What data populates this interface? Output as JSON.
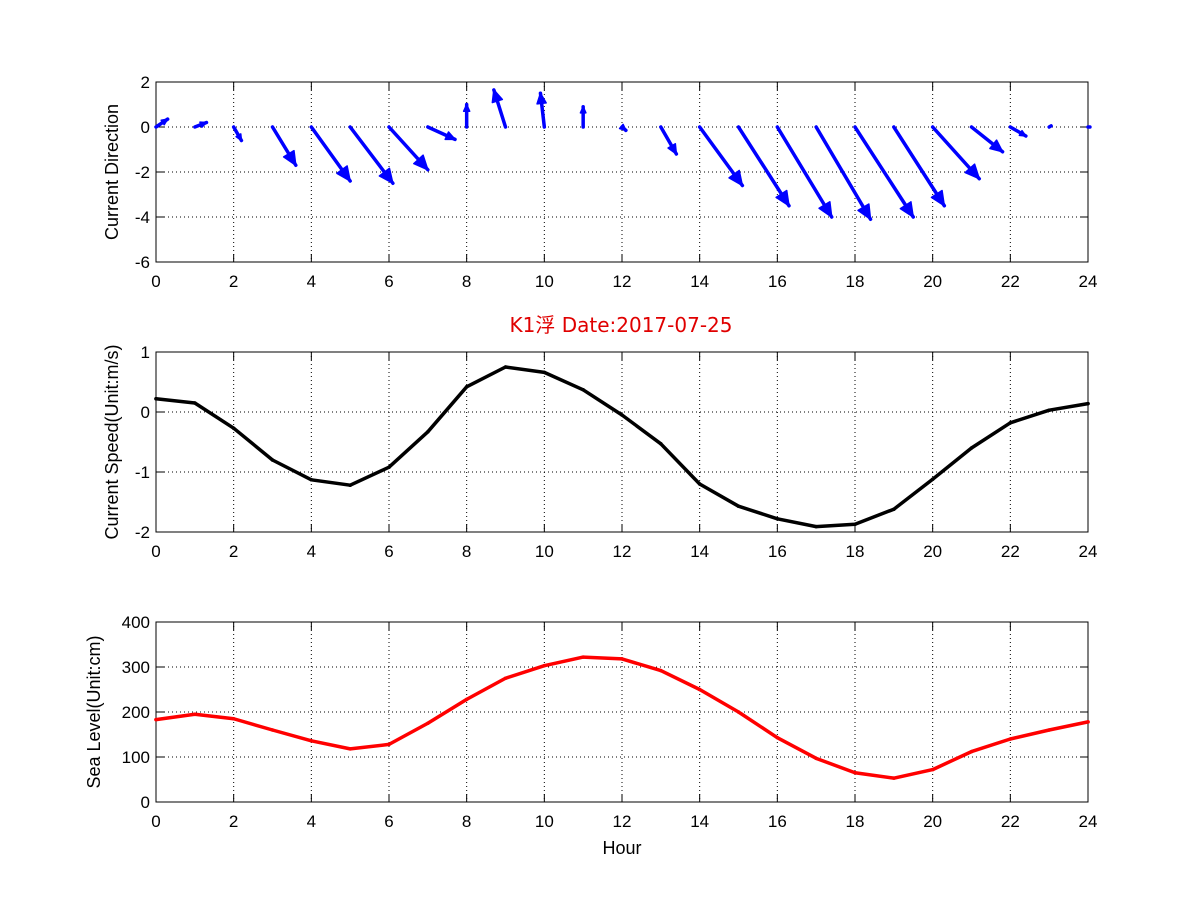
{
  "title": "K1浮    Date:2017-07-25",
  "colors": {
    "title": "#e00000",
    "arrows": "#0000ff",
    "speed_line": "#000000",
    "sea_level_line": "#ff0000"
  },
  "chart_data": [
    {
      "type": "quiver",
      "ylabel": "Current Direction",
      "xlabel": "",
      "xlim": [
        0,
        24
      ],
      "ylim": [
        -6,
        2
      ],
      "xticks": [
        0,
        2,
        4,
        6,
        8,
        10,
        12,
        14,
        16,
        18,
        20,
        22,
        24
      ],
      "yticks": [
        -6,
        -4,
        -2,
        0,
        2
      ],
      "grid": true,
      "x": [
        0,
        1,
        2,
        3,
        4,
        5,
        6,
        7,
        8,
        9,
        10,
        11,
        12,
        13,
        14,
        15,
        16,
        17,
        18,
        19,
        20,
        21,
        22,
        23,
        24
      ],
      "u": [
        0.3,
        0.3,
        0.2,
        0.6,
        1.0,
        1.1,
        1.0,
        0.7,
        0.0,
        -0.3,
        -0.1,
        0.0,
        0.1,
        0.4,
        1.1,
        1.3,
        1.4,
        1.4,
        1.5,
        1.3,
        1.2,
        0.8,
        0.4,
        0.05,
        0.05
      ],
      "v": [
        0.35,
        0.2,
        -0.6,
        -1.7,
        -2.4,
        -2.5,
        -1.9,
        -0.55,
        1.0,
        1.65,
        1.5,
        0.9,
        -0.15,
        -1.2,
        -2.6,
        -3.5,
        -4.0,
        -4.1,
        -4.0,
        -3.5,
        -2.3,
        -1.1,
        -0.4,
        0.05,
        0.0
      ]
    },
    {
      "type": "line",
      "ylabel": "Current Speed(Unit:m/s)",
      "xlabel": "",
      "xlim": [
        0,
        24
      ],
      "ylim": [
        -2,
        1
      ],
      "xticks": [
        0,
        2,
        4,
        6,
        8,
        10,
        12,
        14,
        16,
        18,
        20,
        22,
        24
      ],
      "yticks": [
        -2,
        -1,
        0,
        1
      ],
      "grid": true,
      "x": [
        0,
        1,
        2,
        3,
        4,
        5,
        6,
        7,
        8,
        9,
        10,
        11,
        12,
        13,
        14,
        15,
        16,
        17,
        18,
        19,
        20,
        21,
        22,
        23,
        24
      ],
      "y": [
        0.22,
        0.15,
        -0.27,
        -0.8,
        -1.13,
        -1.22,
        -0.92,
        -0.33,
        0.42,
        0.75,
        0.66,
        0.37,
        -0.05,
        -0.53,
        -1.2,
        -1.57,
        -1.78,
        -1.91,
        -1.87,
        -1.62,
        -1.12,
        -0.6,
        -0.18,
        0.03,
        0.14
      ]
    },
    {
      "type": "line",
      "ylabel": "Sea Level(Unit:cm)",
      "xlabel": "Hour",
      "xlim": [
        0,
        24
      ],
      "ylim": [
        0,
        400
      ],
      "xticks": [
        0,
        2,
        4,
        6,
        8,
        10,
        12,
        14,
        16,
        18,
        20,
        22,
        24
      ],
      "yticks": [
        0,
        100,
        200,
        300,
        400
      ],
      "grid": true,
      "x": [
        0,
        1,
        2,
        3,
        4,
        5,
        6,
        7,
        8,
        9,
        10,
        11,
        12,
        13,
        14,
        15,
        16,
        17,
        18,
        19,
        20,
        21,
        22,
        23,
        24
      ],
      "y": [
        183,
        195,
        185,
        160,
        136,
        118,
        128,
        175,
        228,
        275,
        303,
        322,
        318,
        292,
        250,
        200,
        143,
        97,
        65,
        53,
        72,
        112,
        140,
        160,
        178
      ]
    }
  ]
}
